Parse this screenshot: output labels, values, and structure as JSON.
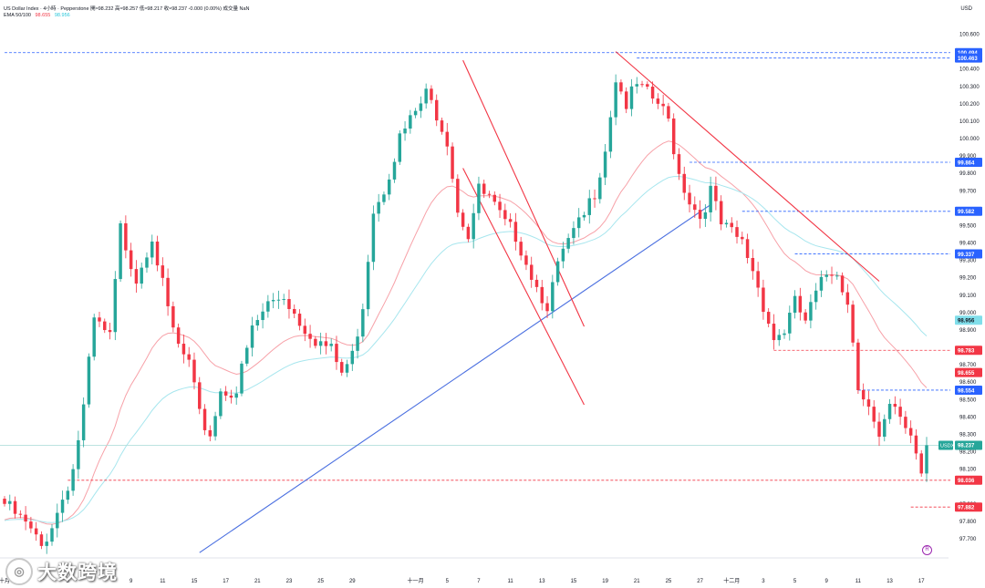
{
  "header": {
    "instrument": "US Dollar Index · 4小時 · Pepperstone",
    "ohlc": "開≈98.232 高≈98.257 低≈98.217 收≈98.237 -0.000 (0.00%)",
    "volume": "成交量 NaN",
    "indicator": "EMA 50/100",
    "ema50": "98.655",
    "ema100": "98.956"
  },
  "currency": "USD",
  "brand": {
    "icon": "brand-logo-icon",
    "text": "大数跨境"
  },
  "reset_label": "R",
  "colors": {
    "up": "#26a69a",
    "down": "#f23645",
    "ema50": "#f7a1a8",
    "ema100": "#a7e6ee",
    "trend_up": "#4a6fe0",
    "trend_down": "#f23645"
  },
  "chart_data": {
    "type": "candlestick",
    "symbol": "USDX",
    "timeframe": "4H",
    "ylim": [
      97.6,
      100.65
    ],
    "yticks": [
      97.7,
      97.8,
      97.9,
      98.1,
      98.2,
      98.3,
      98.4,
      98.5,
      98.6,
      98.7,
      98.9,
      99.0,
      99.1,
      99.2,
      99.3,
      99.4,
      99.5,
      99.7,
      99.8,
      99.9,
      100.0,
      100.1,
      100.2,
      100.3,
      100.4,
      100.6
    ],
    "ytick_labels": [
      "97.700",
      "97.800",
      "97.900",
      "98.100",
      "98.200",
      "98.300",
      "98.400",
      "98.500",
      "98.600",
      "98.700",
      "98.900",
      "99.000",
      "99.100",
      "99.200",
      "99.300",
      "99.400",
      "99.500",
      "99.700",
      "99.800",
      "99.900",
      "100.000",
      "100.100",
      "100.200",
      "100.300",
      "100.400",
      "100.600"
    ],
    "xticks": [
      {
        "label": "十月",
        "i": 0
      },
      {
        "label": "5",
        "i": 12
      },
      {
        "label": "9",
        "i": 24
      },
      {
        "label": "11",
        "i": 30
      },
      {
        "label": "15",
        "i": 36
      },
      {
        "label": "17",
        "i": 42
      },
      {
        "label": "21",
        "i": 48
      },
      {
        "label": "23",
        "i": 54
      },
      {
        "label": "25",
        "i": 60
      },
      {
        "label": "29",
        "i": 66
      },
      {
        "label": "十一月",
        "i": 78
      },
      {
        "label": "5",
        "i": 84
      },
      {
        "label": "7",
        "i": 90
      },
      {
        "label": "11",
        "i": 96
      },
      {
        "label": "13",
        "i": 102
      },
      {
        "label": "15",
        "i": 108
      },
      {
        "label": "19",
        "i": 114
      },
      {
        "label": "21",
        "i": 120
      },
      {
        "label": "25",
        "i": 126
      },
      {
        "label": "27",
        "i": 132
      },
      {
        "label": "十二月",
        "i": 138
      },
      {
        "label": "3",
        "i": 144
      },
      {
        "label": "5",
        "i": 150
      },
      {
        "label": "9",
        "i": 156
      },
      {
        "label": "11",
        "i": 162
      },
      {
        "label": "13",
        "i": 168
      },
      {
        "label": "17",
        "i": 174
      }
    ],
    "anchors": [
      [
        0,
        97.9
      ],
      [
        4,
        97.78
      ],
      [
        7,
        97.65
      ],
      [
        10,
        97.85
      ],
      [
        13,
        98.1
      ],
      [
        15,
        98.45
      ],
      [
        17,
        98.95
      ],
      [
        20,
        98.85
      ],
      [
        22,
        99.48
      ],
      [
        25,
        99.2
      ],
      [
        28,
        99.45
      ],
      [
        31,
        99.0
      ],
      [
        33,
        98.8
      ],
      [
        35,
        98.7
      ],
      [
        37,
        98.4
      ],
      [
        39,
        98.3
      ],
      [
        41,
        98.55
      ],
      [
        44,
        98.55
      ],
      [
        47,
        98.9
      ],
      [
        50,
        99.05
      ],
      [
        53,
        99.1
      ],
      [
        56,
        98.95
      ],
      [
        59,
        98.85
      ],
      [
        62,
        98.78
      ],
      [
        64,
        98.65
      ],
      [
        66,
        98.75
      ],
      [
        68,
        99.05
      ],
      [
        70,
        99.6
      ],
      [
        72,
        99.72
      ],
      [
        75,
        100.0
      ],
      [
        78,
        100.15
      ],
      [
        80,
        100.25
      ],
      [
        82,
        100.15
      ],
      [
        84,
        100.0
      ],
      [
        86,
        99.6
      ],
      [
        88,
        99.45
      ],
      [
        90,
        99.7
      ],
      [
        92,
        99.65
      ],
      [
        95,
        99.5
      ],
      [
        97,
        99.45
      ],
      [
        99,
        99.3
      ],
      [
        101,
        99.15
      ],
      [
        103,
        99.05
      ],
      [
        104,
        99.15
      ],
      [
        106,
        99.35
      ],
      [
        108,
        99.45
      ],
      [
        110,
        99.55
      ],
      [
        112,
        99.7
      ],
      [
        114,
        99.95
      ],
      [
        116,
        100.35
      ],
      [
        118,
        100.2
      ],
      [
        120,
        100.3
      ],
      [
        122,
        100.25
      ],
      [
        124,
        100.2
      ],
      [
        126,
        100.1
      ],
      [
        128,
        99.8
      ],
      [
        130,
        99.65
      ],
      [
        132,
        99.55
      ],
      [
        134,
        99.7
      ],
      [
        136,
        99.5
      ],
      [
        138,
        99.45
      ],
      [
        140,
        99.4
      ],
      [
        142,
        99.25
      ],
      [
        144,
        99.05
      ],
      [
        146,
        98.85
      ],
      [
        148,
        98.9
      ],
      [
        150,
        99.05
      ],
      [
        152,
        98.95
      ],
      [
        154,
        99.1
      ],
      [
        156,
        99.22
      ],
      [
        158,
        99.25
      ],
      [
        160,
        99.05
      ],
      [
        161,
        98.85
      ],
      [
        162,
        98.6
      ],
      [
        164,
        98.45
      ],
      [
        166,
        98.25
      ],
      [
        168,
        98.45
      ],
      [
        170,
        98.4
      ],
      [
        172,
        98.3
      ],
      [
        174,
        98.1
      ],
      [
        175,
        98.237
      ]
    ],
    "trendlines": [
      {
        "color": "#4a6fe0",
        "points": [
          [
            37,
            97.62
          ],
          [
            134,
            99.62
          ]
        ]
      },
      {
        "color": "#f23645",
        "points": [
          [
            87,
            100.45
          ],
          [
            110,
            98.92
          ]
        ]
      },
      {
        "color": "#f23645",
        "points": [
          [
            87,
            99.83
          ],
          [
            110,
            98.47
          ]
        ]
      },
      {
        "color": "#f23645",
        "points": [
          [
            116,
            100.5
          ],
          [
            166,
            99.18
          ]
        ]
      }
    ],
    "levels": [
      {
        "value": 100.494,
        "label": "100.494",
        "color": "#2962ff",
        "from": 0
      },
      {
        "value": 100.463,
        "label": "100.463",
        "color": "#2962ff",
        "from": 120
      },
      {
        "value": 99.864,
        "label": "99.864",
        "color": "#2962ff",
        "from": 130
      },
      {
        "value": 99.582,
        "label": "99.582",
        "color": "#2962ff",
        "from": 140
      },
      {
        "value": 99.337,
        "label": "99.337",
        "color": "#2962ff",
        "from": 150
      },
      {
        "value": 98.783,
        "label": "98.783",
        "color": "#f23645",
        "from": 146
      },
      {
        "value": 98.554,
        "label": "98.554",
        "color": "#2962ff",
        "from": 162
      },
      {
        "value": 98.036,
        "label": "98.036",
        "color": "#f23645",
        "from": 12
      },
      {
        "value": 97.882,
        "label": "97.882",
        "color": "#f23645",
        "from": 172
      }
    ],
    "indicator_labels": [
      {
        "value": 98.956,
        "label": "98.956",
        "bg": "#80deea",
        "fg": "#131722"
      },
      {
        "value": 98.655,
        "label": "98.655",
        "bg": "#f23645",
        "fg": "#ffffff"
      }
    ],
    "last": {
      "value": 98.237,
      "tag": "USDX",
      "label": "98.237"
    }
  }
}
